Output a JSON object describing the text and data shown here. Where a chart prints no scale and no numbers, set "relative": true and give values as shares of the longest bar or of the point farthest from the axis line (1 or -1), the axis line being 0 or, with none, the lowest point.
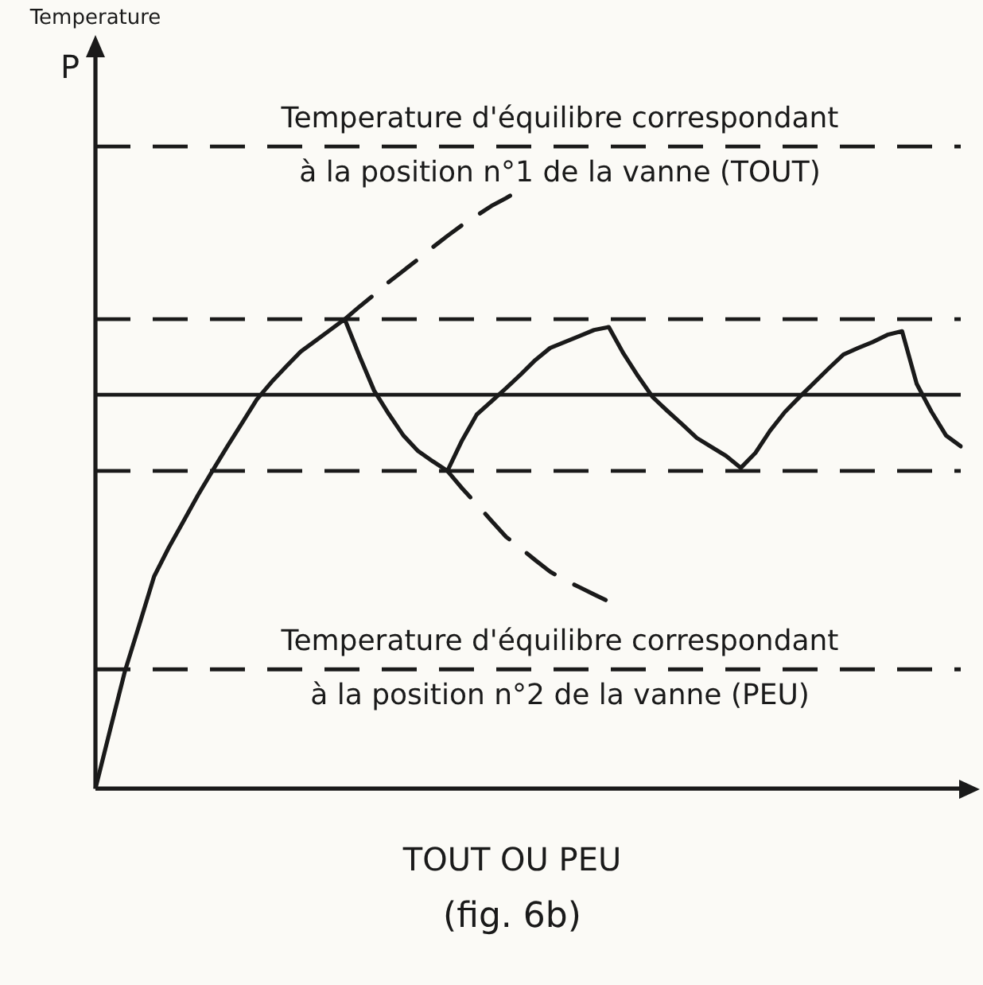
{
  "chart_data": {
    "type": "line",
    "relative": true,
    "xlabel": "TOUT OU PEU",
    "legend": false,
    "marker": "none",
    "annotations": [
      "Temperature",
      "P",
      "(fig. 6b)"
    ],
    "categories": [
      null,
      null,
      null,
      null,
      null,
      null,
      null,
      null,
      null,
      null,
      null,
      null,
      null,
      null,
      null,
      null,
      null,
      null,
      null,
      null,
      null,
      null,
      null,
      null,
      null,
      null,
      null,
      null,
      null,
      null,
      null,
      null,
      null,
      null,
      null,
      null,
      null,
      null,
      null,
      null,
      null,
      null,
      null,
      null,
      null,
      null,
      null,
      null,
      null,
      null,
      null,
      null,
      null,
      null,
      null,
      null,
      null,
      null,
      null,
      null
    ],
    "series": [
      {
        "color": "#1a1a1a",
        "line_style": "solid",
        "values": [
          0,
          0.098,
          0.195,
          0.274,
          0.354,
          0.402,
          0.446,
          0.49,
          0.531,
          0.571,
          0.61,
          0.649,
          0.678,
          0.704,
          0.729,
          0.747,
          0.765,
          0.783,
          0.722,
          0.664,
          0.625,
          0.589,
          0.563,
          0.546,
          0.53,
          0.581,
          0.624,
          0.646,
          0.668,
          0.691,
          0.715,
          0.735,
          0.745,
          0.755,
          0.765,
          0.77,
          0.726,
          0.688,
          0.653,
          0.63,
          0.608,
          0.585,
          0.57,
          0.555,
          0.535,
          0.56,
          0.597,
          0.628,
          0.653,
          0.677,
          0.701,
          0.724,
          0.735,
          0.745,
          0.757,
          0.763,
          0.675,
          0.629,
          0.589,
          0.571
        ]
      },
      {
        "color": "#1a1a1a",
        "line_style": "dashed",
        "values": [
          null,
          null,
          null,
          null,
          null,
          null,
          null,
          null,
          null,
          null,
          null,
          null,
          null,
          null,
          null,
          null,
          null,
          0.783,
          0.804,
          0.824,
          0.845,
          0.864,
          0.883,
          0.903,
          0.922,
          0.94,
          0.956,
          0.972,
          0.985,
          1,
          null,
          null,
          null,
          null,
          null,
          null,
          null,
          null,
          null,
          null,
          null,
          null,
          null,
          null,
          null,
          null,
          null,
          null,
          null,
          null,
          null,
          null,
          null,
          null,
          null,
          null,
          null,
          null,
          null,
          null
        ]
      },
      {
        "color": "#1a1a1a",
        "line_style": "dashed",
        "values": [
          null,
          null,
          null,
          null,
          null,
          null,
          null,
          null,
          null,
          null,
          null,
          null,
          null,
          null,
          null,
          null,
          null,
          null,
          null,
          null,
          null,
          null,
          null,
          null,
          0.53,
          0.501,
          0.474,
          0.447,
          0.42,
          0.401,
          0.381,
          0.362,
          0.348,
          0.336,
          0.324,
          0.312,
          null,
          null,
          null,
          null,
          null,
          null,
          null,
          null,
          null,
          null,
          null,
          null,
          null,
          null,
          null,
          null,
          null,
          null,
          null,
          null,
          null,
          null,
          null,
          null
        ]
      }
    ],
    "ref_lines": [
      {
        "axis": "y",
        "value": 1.071,
        "label": "Temperature d'équilibre correspondant\nà la position n°1 de la vanne (TOUT)",
        "color": "#1a1a1a",
        "line_style": "dashed"
      },
      {
        "axis": "y",
        "value": 0.783,
        "color": "#1a1a1a",
        "line_style": "dashed"
      },
      {
        "axis": "y",
        "value": 0.657,
        "color": "#1a1a1a",
        "line_style": "solid"
      },
      {
        "axis": "y",
        "value": 0.53,
        "color": "#1a1a1a",
        "line_style": "dashed"
      },
      {
        "axis": "y",
        "value": 0.199,
        "label": "Temperature d'équilibre correspondant\nà la position n°2 de la vanne (PEU)",
        "color": "#1a1a1a",
        "line_style": "dashed"
      }
    ]
  }
}
